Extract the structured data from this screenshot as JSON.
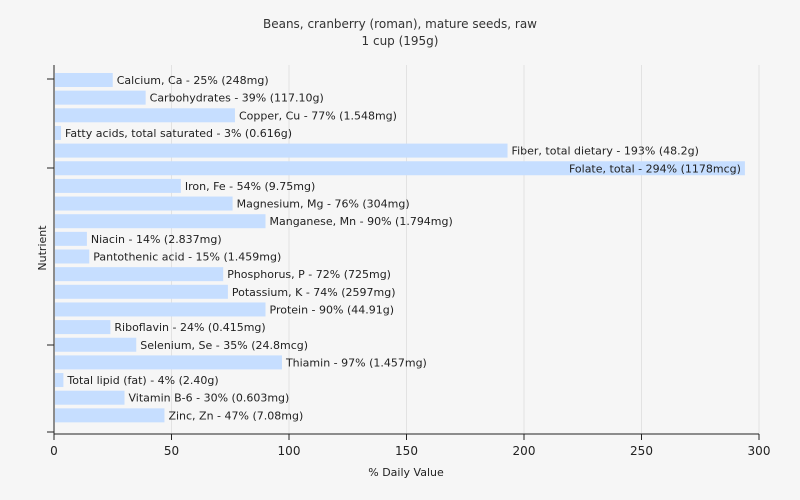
{
  "chart_data": {
    "type": "bar",
    "orientation": "horizontal",
    "title": "Beans, cranberry (roman), mature seeds, raw",
    "subtitle": "1 cup (195g)",
    "xlabel": "% Daily Value",
    "ylabel": "Nutrient",
    "xlim": [
      0,
      300
    ],
    "xticks": [
      "0",
      "50",
      "100",
      "150",
      "200",
      "250",
      "300"
    ],
    "grid": "vertical",
    "bar_color": "#c6deff",
    "categories": [
      "Calcium, Ca - 25% (248mg)",
      "Carbohydrates - 39% (117.10g)",
      "Copper, Cu - 77% (1.548mg)",
      "Fatty acids, total saturated - 3% (0.616g)",
      "Fiber, total dietary - 193% (48.2g)",
      "Folate, total - 294% (1178mcg)",
      "Iron, Fe - 54% (9.75mg)",
      "Magnesium, Mg - 76% (304mg)",
      "Manganese, Mn - 90% (1.794mg)",
      "Niacin - 14% (2.837mg)",
      "Pantothenic acid - 15% (1.459mg)",
      "Phosphorus, P - 72% (725mg)",
      "Potassium, K - 74% (2597mg)",
      "Protein - 90% (44.91g)",
      "Riboflavin - 24% (0.415mg)",
      "Selenium, Se - 35% (24.8mcg)",
      "Thiamin - 97% (1.457mg)",
      "Total lipid (fat) - 4% (2.40g)",
      "Vitamin B-6 - 30% (0.603mg)",
      "Zinc, Zn - 47% (7.08mg)"
    ],
    "values": [
      25,
      39,
      77,
      3,
      193,
      294,
      54,
      76,
      90,
      14,
      15,
      72,
      74,
      90,
      24,
      35,
      97,
      4,
      30,
      47
    ]
  }
}
